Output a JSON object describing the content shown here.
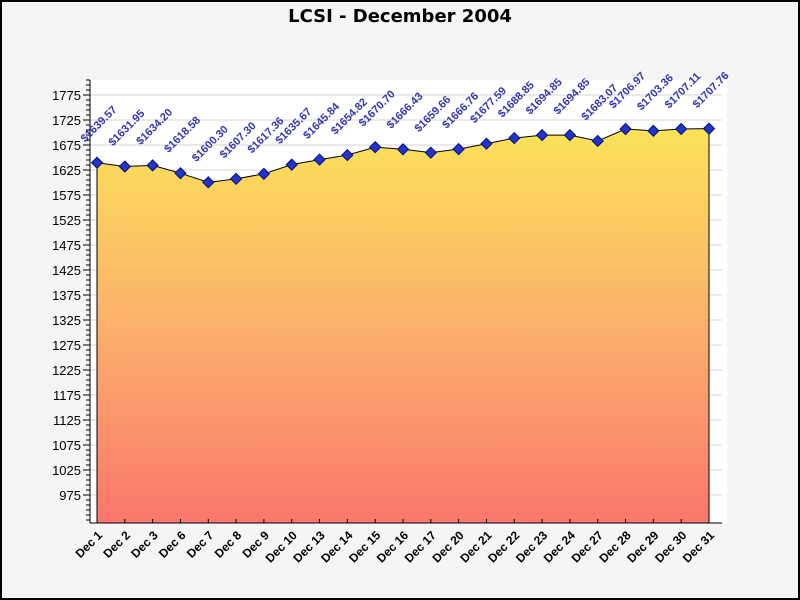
{
  "chart_data": {
    "type": "area",
    "title": "LCSI - December 2004",
    "xlabel": "",
    "ylabel": "",
    "categories": [
      "Dec 1",
      "Dec 2",
      "Dec 3",
      "Dec 6",
      "Dec 7",
      "Dec 8",
      "Dec 9",
      "Dec 10",
      "Dec 13",
      "Dec 14",
      "Dec 15",
      "Dec 16",
      "Dec 17",
      "Dec 20",
      "Dec 21",
      "Dec 22",
      "Dec 23",
      "Dec 24",
      "Dec 27",
      "Dec 28",
      "Dec 29",
      "Dec 30",
      "Dec 31"
    ],
    "values": [
      1639.57,
      1631.95,
      1634.2,
      1618.58,
      1600.3,
      1607.3,
      1617.36,
      1635.67,
      1645.84,
      1654.82,
      1670.7,
      1666.43,
      1659.66,
      1666.76,
      1677.59,
      1688.85,
      1694.85,
      1694.85,
      1683.07,
      1706.97,
      1703.36,
      1707.11,
      1707.76
    ],
    "point_labels": [
      "$1639.57",
      "$1631.95",
      "$1634.20",
      "$1618.58",
      "$1600.30",
      "$1607.30",
      "$1617.36",
      "$1635.67",
      "$1645.84",
      "$1654.82",
      "$1670.70",
      "$1666.43",
      "$1659.66",
      "$1666.76",
      "$1677.59",
      "$1688.85",
      "$1694.85",
      "$1694.85",
      "$1683.07",
      "$1706.97",
      "$1703.36",
      "$1707.11",
      "$1707.76"
    ],
    "ylim": [
      919,
      1805
    ],
    "yticks": {
      "label_start": 975,
      "label_end": 1775,
      "label_step": 50,
      "minor_step": 10
    },
    "grid": true,
    "legend": "none",
    "marker_shape": "diamond",
    "colors": {
      "area_top": "#FBE44A",
      "area_mid": "#FBA95F",
      "area_bottom": "#FA6B60",
      "line": "#000000",
      "marker_fill": "#2433C8",
      "marker_stroke": "#001078",
      "point_label": "#3434AE",
      "grid": "#D4D4D4",
      "axis": "#000000",
      "tick_label": "#000000",
      "background": "#F5F5F5",
      "plot_background": "#FFFFFF",
      "border": "#000000"
    }
  }
}
